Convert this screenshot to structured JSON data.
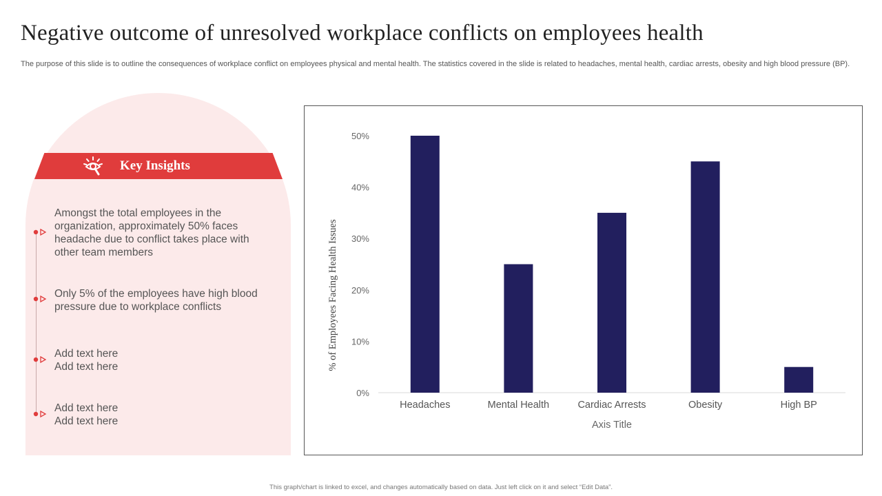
{
  "page": {
    "title": "Negative outcome of unresolved workplace conflicts on employees health",
    "subtitle": "The purpose of this slide is to outline the consequences of workplace conflict on employees physical and mental health. The statistics covered in the slide is related to headaches, mental health, cardiac arrests, obesity and high blood pressure (BP).",
    "footer": "This graph/chart is linked to excel, and changes automatically based on data. Just left click on it and select “Edit Data”."
  },
  "insights": {
    "heading": "Key Insights",
    "icon": "eye-search-icon",
    "items": [
      "Amongst the total employees in the organization, approximately 50% faces headache due to conflict takes place with other team members",
      "Only 5% of the employees have high blood pressure due to workplace conflicts",
      "Add text here\nAdd text here",
      "Add text here\nAdd text here"
    ]
  },
  "colors": {
    "accent": "#e03c3c",
    "panel": "#fceaea",
    "bar": "#221f5e"
  },
  "chart_data": {
    "type": "bar",
    "categories": [
      "Headaches",
      "Mental Health",
      "Cardiac Arrests",
      "Obesity",
      "High BP"
    ],
    "values": [
      50,
      25,
      35,
      45,
      5
    ],
    "ylim": [
      0,
      50
    ],
    "yticks": [
      0,
      10,
      20,
      30,
      40,
      50
    ],
    "ytick_labels": [
      "0%",
      "10%",
      "20%",
      "30%",
      "40%",
      "50%"
    ],
    "xlabel": "Axis Title",
    "ylabel": "% of Employees Facing Health Issues",
    "title": "",
    "grid": false,
    "legend": "none"
  }
}
